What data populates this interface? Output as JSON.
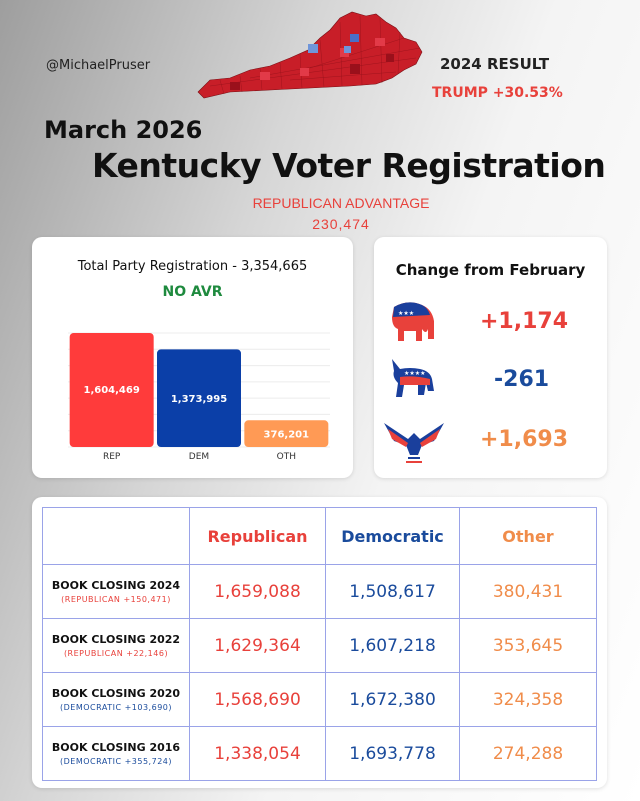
{
  "header": {
    "handle": "@MichaelPruser",
    "result_label": "2024 RESULT",
    "result_value": "TRUMP +30.53%",
    "month": "March 2026",
    "title": "Kentucky Voter Registration",
    "advantage_label": "REPUBLICAN ADVANTAGE",
    "advantage_value": "230,474"
  },
  "colors": {
    "rep": "#ff3b3b",
    "dem": "#0b3fa8",
    "oth": "#ff9a55"
  },
  "chart_data": {
    "type": "bar",
    "title": "Total Party Registration - 3,354,665",
    "subtitle": "NO AVR",
    "categories": [
      "REP",
      "DEM",
      "OTH"
    ],
    "values": [
      1604469,
      1373995,
      376201
    ],
    "value_labels": [
      "1,604,469",
      "1,373,995",
      "376,201"
    ],
    "ylim": [
      0,
      1604469
    ],
    "grid": true
  },
  "change": {
    "title": "Change from February",
    "items": [
      {
        "party": "republican",
        "value": "+1,174",
        "icon": "elephant-icon"
      },
      {
        "party": "democratic",
        "value": "-261",
        "icon": "donkey-icon"
      },
      {
        "party": "other",
        "value": "+1,693",
        "icon": "eagle-icon"
      }
    ]
  },
  "table": {
    "headers": [
      "Republican",
      "Democratic",
      "Other"
    ],
    "rows": [
      {
        "label": "BOOK CLOSING 2024",
        "sub": "(REPUBLICAN +150,471)",
        "sub_party": "rep",
        "rep": "1,659,088",
        "dem": "1,508,617",
        "oth": "380,431"
      },
      {
        "label": "BOOK CLOSING 2022",
        "sub": "(REPUBLICAN +22,146)",
        "sub_party": "rep",
        "rep": "1,629,364",
        "dem": "1,607,218",
        "oth": "353,645"
      },
      {
        "label": "BOOK CLOSING 2020",
        "sub": "(DEMOCRATIC +103,690)",
        "sub_party": "dem",
        "rep": "1,568,690",
        "dem": "1,672,380",
        "oth": "324,358"
      },
      {
        "label": "BOOK CLOSING 2016",
        "sub": "(DEMOCRATIC +355,724)",
        "sub_party": "dem",
        "rep": "1,338,054",
        "dem": "1,693,778",
        "oth": "274,288"
      }
    ]
  }
}
